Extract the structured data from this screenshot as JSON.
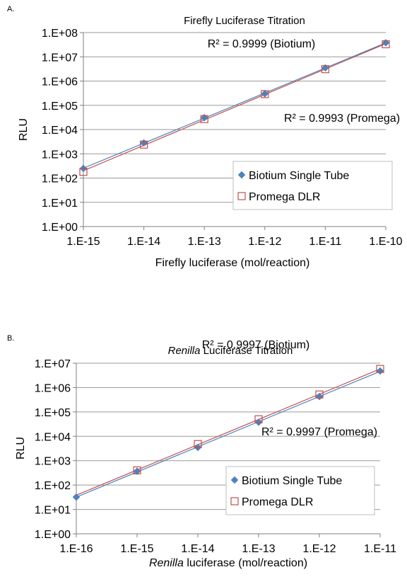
{
  "chart_data": [
    {
      "type": "scatter",
      "panel_label": "A.",
      "title": "Firefly Luciferase Titration",
      "title_italic": "",
      "xlabel": "Firefly luciferase (mol/reaction)",
      "xlabel_italic": "",
      "ylabel": "RLU",
      "xscale": "log",
      "yscale": "log",
      "xlim": [
        1e-15,
        1e-10
      ],
      "ylim": [
        1,
        100000000
      ],
      "xticks": [
        "1.E-15",
        "1.E-14",
        "1.E-13",
        "1.E-12",
        "1.E-11",
        "1.E-10"
      ],
      "yticks": [
        "1.E+00",
        "1.E+01",
        "1.E+02",
        "1.E+03",
        "1.E+04",
        "1.E+05",
        "1.E+06",
        "1.E+07",
        "1.E+08"
      ],
      "grid": "horizontal",
      "legend_position": "bottom-right",
      "series": [
        {
          "name": "Biotium Single Tube",
          "marker": "diamond",
          "color": "#4F81BD",
          "x": [
            1e-15,
            1e-14,
            1e-13,
            1e-12,
            1e-11,
            1e-10
          ],
          "y": [
            250,
            2800,
            31000,
            300000,
            3500000,
            38000000
          ]
        },
        {
          "name": "Promega DLR",
          "marker": "square-open",
          "color": "#C0504D",
          "x": [
            1e-15,
            1e-14,
            1e-13,
            1e-12,
            1e-11,
            1e-10
          ],
          "y": [
            180,
            2400,
            27000,
            290000,
            3100000,
            33000000
          ]
        }
      ],
      "annotations": [
        {
          "text": "R² = 0.9999 (Biotium)"
        },
        {
          "text": "R² = 0.9993 (Promega)"
        }
      ]
    },
    {
      "type": "scatter",
      "panel_label": "B.",
      "title": " Luciferase Titration",
      "title_italic": "Renilla",
      "xlabel": " luciferase (mol/reaction)",
      "xlabel_italic": "Renilla",
      "ylabel": "RLU",
      "xscale": "log",
      "yscale": "log",
      "xlim": [
        1e-16,
        1e-11
      ],
      "ylim": [
        1,
        10000000
      ],
      "xticks": [
        "1.E-16",
        "1.E-15",
        "1.E-14",
        "1.E-13",
        "1.E-12",
        "1.E-11"
      ],
      "yticks": [
        "1.E+00",
        "1.E+01",
        "1.E+02",
        "1.E+03",
        "1.E+04",
        "1.E+05",
        "1.E+06",
        "1.E+07"
      ],
      "grid": "horizontal",
      "legend_position": "bottom-right",
      "series": [
        {
          "name": "Biotium Single Tube",
          "marker": "diamond",
          "color": "#4F81BD",
          "x": [
            1e-16,
            1e-15,
            1e-14,
            1e-13,
            1e-12,
            1e-11
          ],
          "y": [
            32,
            370,
            3500,
            38000,
            430000,
            4800000
          ]
        },
        {
          "name": "Promega DLR",
          "marker": "square-open",
          "color": "#C0504D",
          "x": [
            1e-15,
            1e-14,
            1e-13,
            1e-12,
            1e-11
          ],
          "y": [
            400,
            4800,
            50000,
            520000,
            5800000
          ]
        }
      ],
      "annotations": [
        {
          "text": "R² = 0.9997 (Biotium)"
        },
        {
          "text": "R² = 0.9997 (Promega)"
        }
      ]
    }
  ]
}
